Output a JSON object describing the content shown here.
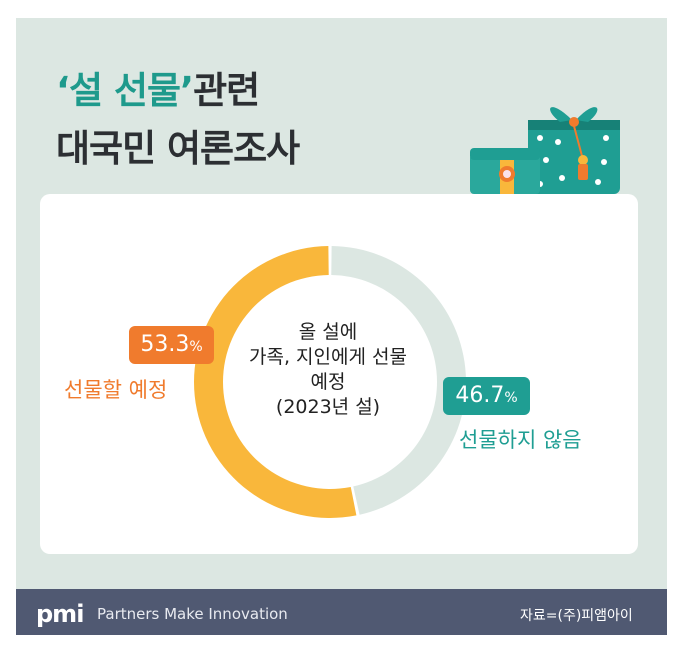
{
  "title": {
    "line1_accent": "‘설 선물’",
    "line1_rest": "관련",
    "line2": "대국민 여론조사"
  },
  "chart_data": {
    "type": "pie",
    "categories": [
      "선물할 예정",
      "선물하지 않음"
    ],
    "values": [
      53.3,
      46.7
    ],
    "value_labels": [
      "53.3",
      "46.7"
    ],
    "unit": "%",
    "center_title": [
      "올 설에",
      "가족, 지인에게 선물",
      "예정",
      "(2023년 설)"
    ],
    "colors": [
      "#f9b73b",
      "#dce7e2"
    ],
    "badge_colors": [
      "#f07b2d",
      "#1f9e93"
    ]
  },
  "footer": {
    "logo_text": "pmi",
    "tagline": "Partners Make Innovation",
    "source": "자료=(주)피앰아이"
  },
  "colors": {
    "background": "#dce7e2",
    "accent_teal": "#1e9a8c",
    "footer_bg": "#505972"
  },
  "icons": [
    "gift-box-icon",
    "gift-pouch-icon"
  ]
}
